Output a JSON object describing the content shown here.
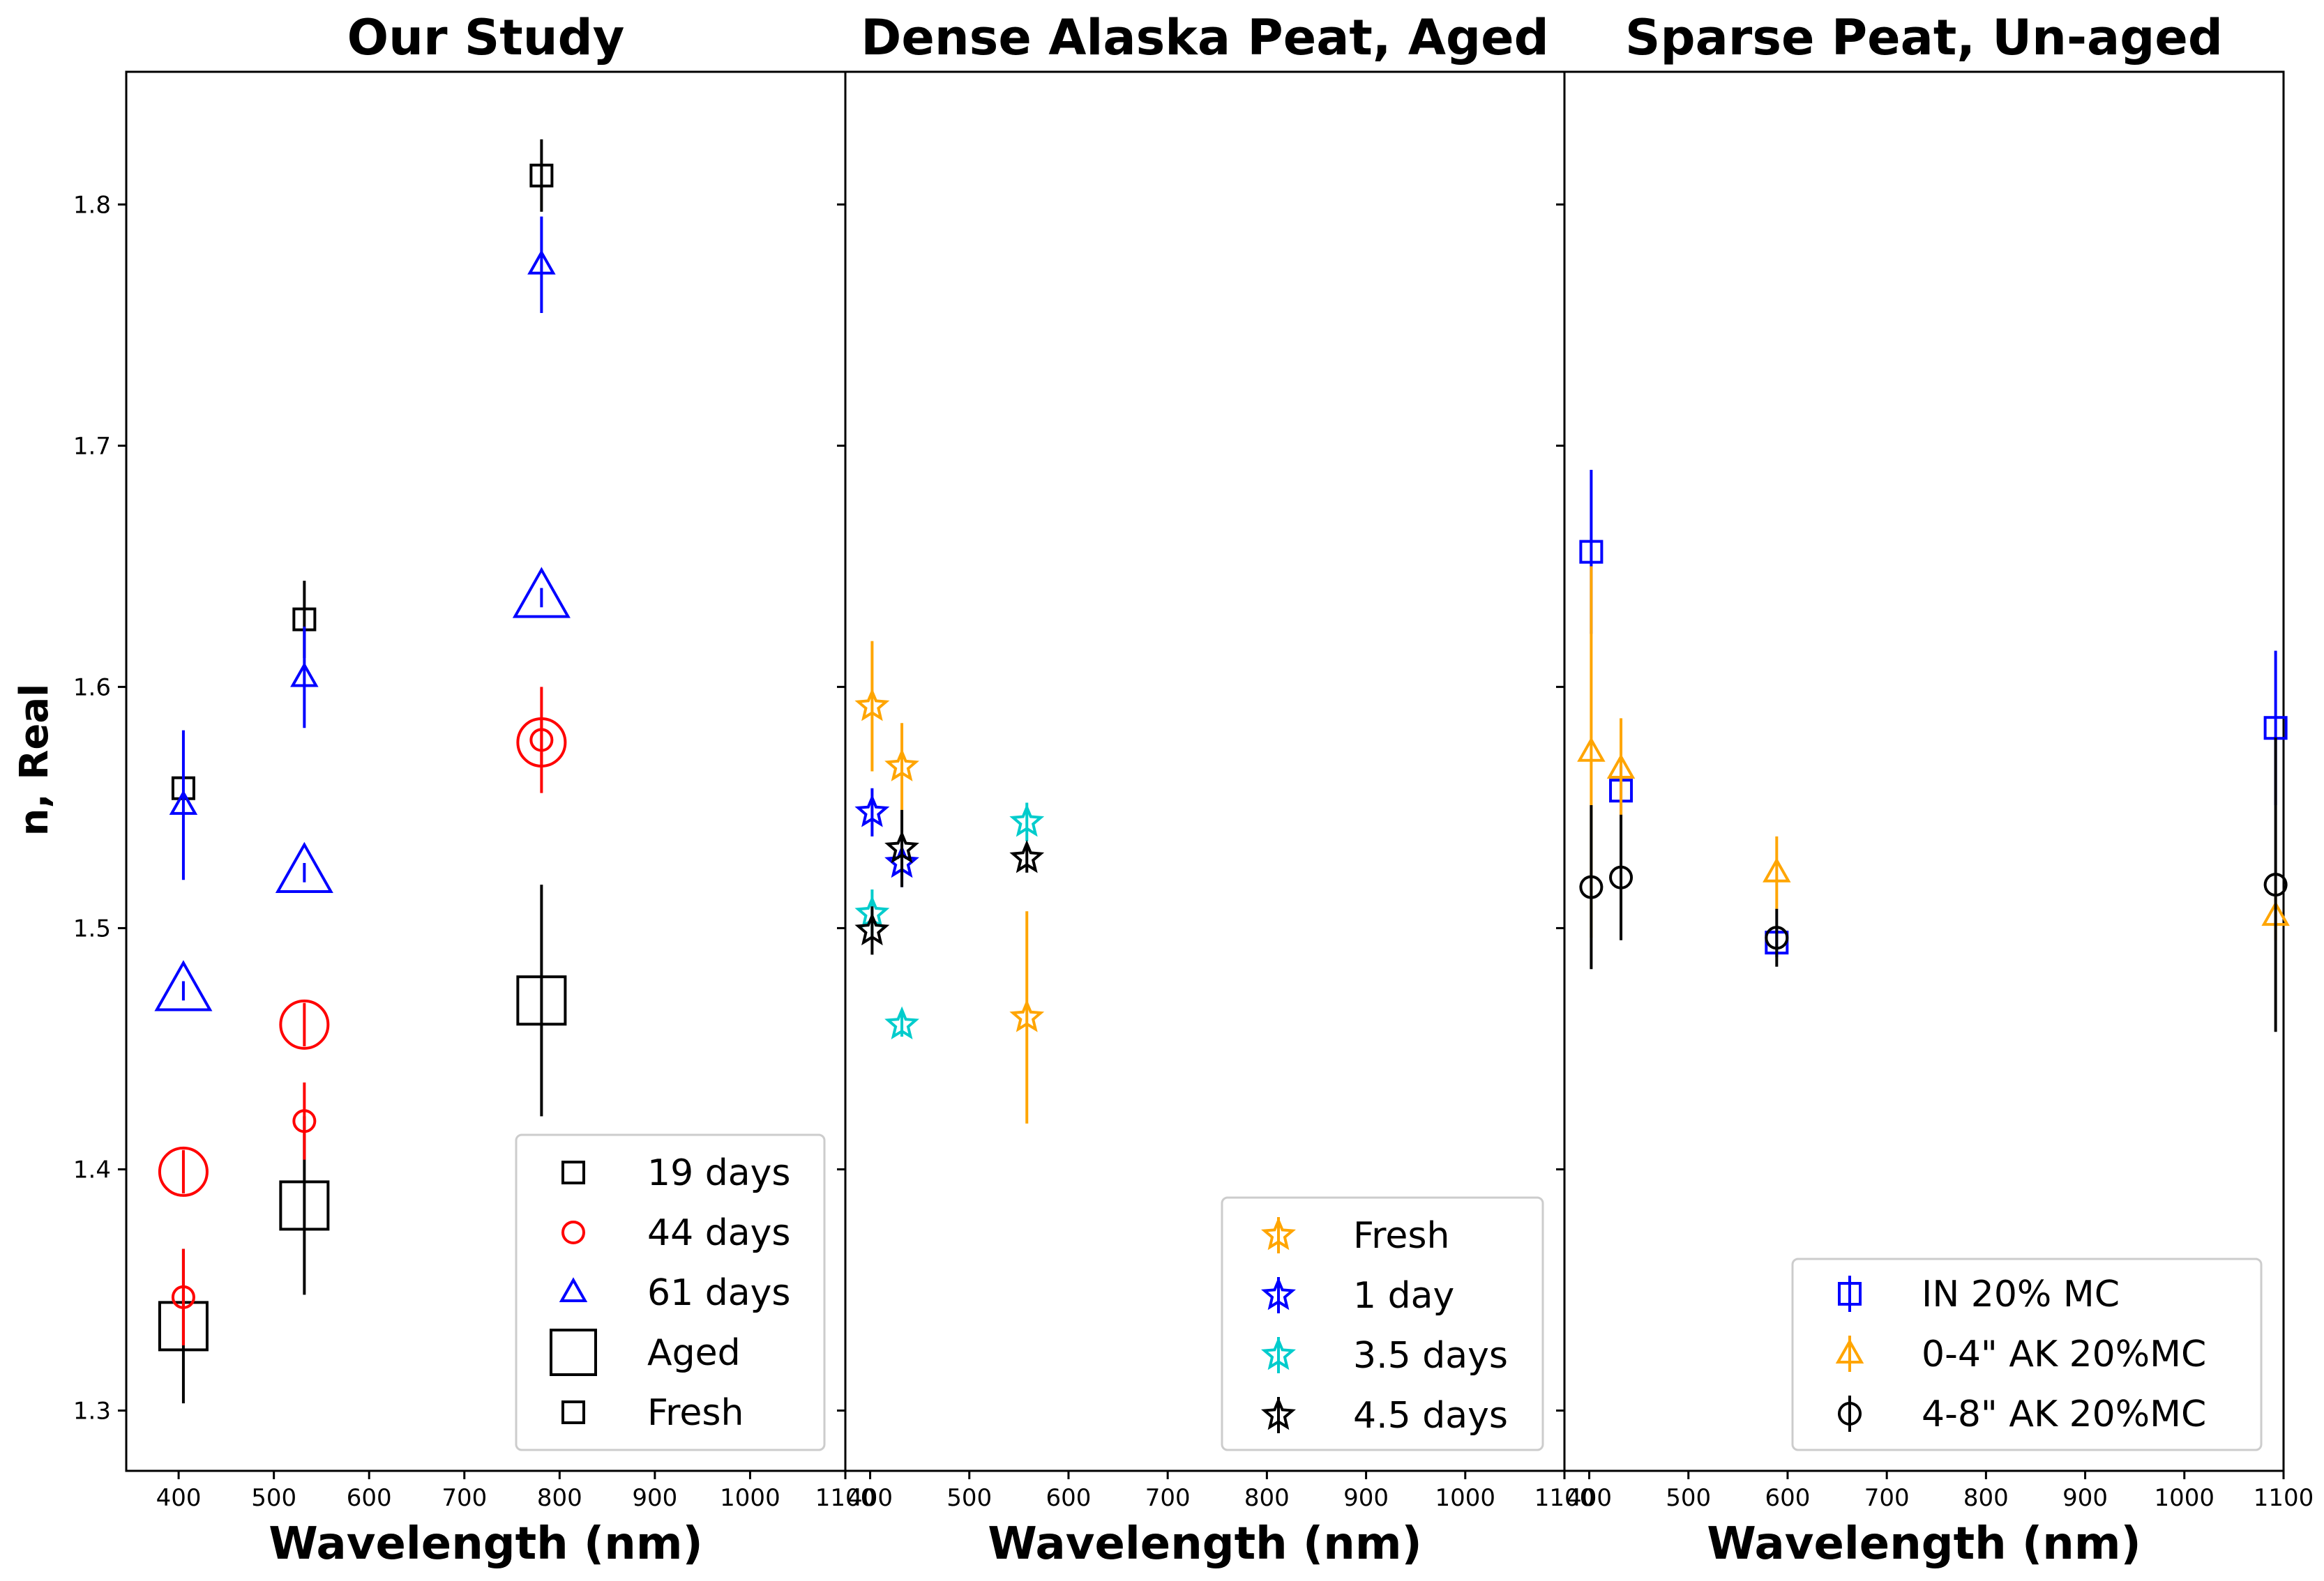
{
  "chart_data": {
    "type": "scatter",
    "ylabel": "n, Real",
    "ylim": [
      1.275,
      1.855
    ],
    "yticks": [
      1.3,
      1.4,
      1.5,
      1.6,
      1.7,
      1.8
    ],
    "ytick_labels": [
      "1.3",
      "1.4",
      "1.5",
      "1.6",
      "1.7",
      "1.8"
    ],
    "panels": [
      {
        "title": "Our Study",
        "xlabel": "Wavelength (nm)",
        "xlim": [
          345,
          1100
        ],
        "xticks": [
          400,
          500,
          600,
          700,
          800,
          900,
          1000,
          1100
        ],
        "xtick_labels": [
          "400",
          "500",
          "600",
          "700",
          "800",
          "900",
          "1000",
          "1100"
        ],
        "legend_position": "lower-right",
        "legend": [
          {
            "label": "19 days",
            "marker": "square",
            "color": "#000000",
            "size": "small"
          },
          {
            "label": "44 days",
            "marker": "circle",
            "color": "#ff0000",
            "size": "small"
          },
          {
            "label": "61 days",
            "marker": "triangle",
            "color": "#0000ff",
            "size": "small"
          },
          {
            "label": "Aged",
            "marker": "square",
            "color": "#000000",
            "size": "large"
          },
          {
            "label": "Fresh",
            "marker": "square",
            "color": "#000000",
            "size": "small"
          }
        ],
        "series": [
          {
            "name": "19 days Aged",
            "marker": "square",
            "color": "#000000",
            "size": "large",
            "points": [
              {
                "x": 405,
                "y": 1.335,
                "err": 0.032
              },
              {
                "x": 532,
                "y": 1.385,
                "err": 0.037
              },
              {
                "x": 781,
                "y": 1.47,
                "err": 0.048
              }
            ]
          },
          {
            "name": "19 days Fresh",
            "marker": "square",
            "color": "#000000",
            "size": "small",
            "points": [
              {
                "x": 405,
                "y": 1.558,
                "err": 0
              },
              {
                "x": 532,
                "y": 1.628,
                "err": 0.016
              },
              {
                "x": 781,
                "y": 1.812,
                "err": 0.015
              }
            ]
          },
          {
            "name": "44 days Aged",
            "marker": "circle",
            "color": "#ff0000",
            "size": "large",
            "points": [
              {
                "x": 405,
                "y": 1.399,
                "err": 0.009
              },
              {
                "x": 532,
                "y": 1.46,
                "err": 0.009
              },
              {
                "x": 781,
                "y": 1.577,
                "err": 0.01
              }
            ]
          },
          {
            "name": "44 days Fresh",
            "marker": "circle",
            "color": "#ff0000",
            "size": "small",
            "points": [
              {
                "x": 405,
                "y": 1.347,
                "err": 0.02
              },
              {
                "x": 532,
                "y": 1.42,
                "err": 0.016
              },
              {
                "x": 781,
                "y": 1.578,
                "err": 0.022
              }
            ]
          },
          {
            "name": "61 days Aged",
            "marker": "triangle",
            "color": "#0000ff",
            "size": "large",
            "points": [
              {
                "x": 405,
                "y": 1.474,
                "err": 0.004
              },
              {
                "x": 532,
                "y": 1.523,
                "err": 0.004
              },
              {
                "x": 781,
                "y": 1.637,
                "err": 0.004
              }
            ]
          },
          {
            "name": "61 days Fresh",
            "marker": "triangle",
            "color": "#0000ff",
            "size": "small",
            "points": [
              {
                "x": 405,
                "y": 1.551,
                "err": 0.031
              },
              {
                "x": 532,
                "y": 1.604,
                "err": 0.021
              },
              {
                "x": 781,
                "y": 1.775,
                "err": 0.02
              }
            ]
          }
        ]
      },
      {
        "title": "Dense Alaska Peat, Aged",
        "xlabel": "Wavelength (nm)",
        "xlim": [
          375,
          1100
        ],
        "xticks": [
          400,
          500,
          600,
          700,
          800,
          900,
          1000,
          1100
        ],
        "xtick_labels": [
          "400",
          "500",
          "600",
          "700",
          "800",
          "900",
          "1000",
          "1100"
        ],
        "legend_position": "lower-right",
        "legend": [
          {
            "label": "Fresh",
            "marker": "star",
            "color": "#ffa500",
            "size": "small"
          },
          {
            "label": "1 day",
            "marker": "star",
            "color": "#0000ff",
            "size": "small"
          },
          {
            "label": "3.5 days",
            "marker": "star",
            "color": "#00cccc",
            "size": "small"
          },
          {
            "label": "4.5 days",
            "marker": "star",
            "color": "#000000",
            "size": "small"
          }
        ],
        "series": [
          {
            "name": "Fresh",
            "marker": "star",
            "color": "#ffa500",
            "size": "small",
            "points": [
              {
                "x": 402,
                "y": 1.592,
                "err": 0.027
              },
              {
                "x": 432,
                "y": 1.567,
                "err": 0.018
              },
              {
                "x": 558,
                "y": 1.463,
                "err": 0.044
              }
            ]
          },
          {
            "name": "1 day",
            "marker": "star",
            "color": "#0000ff",
            "size": "small",
            "points": [
              {
                "x": 402,
                "y": 1.548,
                "err": 0.01
              },
              {
                "x": 432,
                "y": 1.527,
                "err": 0.01
              }
            ]
          },
          {
            "name": "3.5 days",
            "marker": "star",
            "color": "#00cccc",
            "size": "small",
            "points": [
              {
                "x": 402,
                "y": 1.506,
                "err": 0.01
              },
              {
                "x": 432,
                "y": 1.46,
                "err": 0.005
              },
              {
                "x": 558,
                "y": 1.544,
                "err": 0.008
              }
            ]
          },
          {
            "name": "4.5 days",
            "marker": "star",
            "color": "#000000",
            "size": "small",
            "points": [
              {
                "x": 402,
                "y": 1.499,
                "err": 0.01
              },
              {
                "x": 432,
                "y": 1.533,
                "err": 0.016
              },
              {
                "x": 558,
                "y": 1.529,
                "err": 0.006
              }
            ]
          }
        ]
      },
      {
        "title": "Sparse Peat, Un-aged",
        "xlabel": "Wavelength (nm)",
        "xlim": [
          375,
          1100
        ],
        "xticks": [
          400,
          500,
          600,
          700,
          800,
          900,
          1000,
          1100
        ],
        "xtick_labels": [
          "400",
          "500",
          "600",
          "700",
          "800",
          "900",
          "1000",
          "1100"
        ],
        "legend_position": "lower-right",
        "legend": [
          {
            "label": "IN 20% MC",
            "marker": "square",
            "color": "#0000ff",
            "size": "small"
          },
          {
            "label": "0-4\" AK 20%MC",
            "marker": "triangle",
            "color": "#ffa500",
            "size": "small"
          },
          {
            "label": "4-8\" AK 20%MC",
            "marker": "circle",
            "color": "#000000",
            "size": "small"
          }
        ],
        "series": [
          {
            "name": "IN 20% MC",
            "marker": "square",
            "color": "#0000ff",
            "size": "small",
            "points": [
              {
                "x": 402,
                "y": 1.656,
                "err": 0.034
              },
              {
                "x": 432,
                "y": 1.557,
                "err": 0.01
              },
              {
                "x": 589,
                "y": 1.494,
                "err": 0.006
              },
              {
                "x": 1092,
                "y": 1.583,
                "err": 0.032
              }
            ]
          },
          {
            "name": "0-4\" AK 20%MC",
            "marker": "triangle",
            "color": "#ffa500",
            "size": "small",
            "points": [
              {
                "x": 402,
                "y": 1.573,
                "err": 0.077
              },
              {
                "x": 432,
                "y": 1.566,
                "err": 0.021
              },
              {
                "x": 589,
                "y": 1.523,
                "err": 0.015
              },
              {
                "x": 1092,
                "y": 1.505,
                "err": 0.01
              }
            ]
          },
          {
            "name": "4-8\" AK 20%MC",
            "marker": "circle",
            "color": "#000000",
            "size": "small",
            "points": [
              {
                "x": 402,
                "y": 1.517,
                "err": 0.034
              },
              {
                "x": 432,
                "y": 1.521,
                "err": 0.026
              },
              {
                "x": 589,
                "y": 1.496,
                "err": 0.012
              },
              {
                "x": 1092,
                "y": 1.518,
                "err": 0.061
              }
            ]
          }
        ]
      }
    ]
  }
}
